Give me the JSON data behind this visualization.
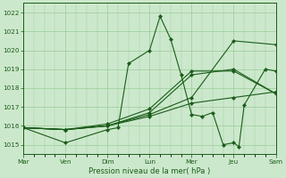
{
  "background_color": "#cce8cc",
  "plot_bg_color": "#cce8cc",
  "grid_color": "#99cc99",
  "line_color": "#1a5c1a",
  "xlabel": "Pression niveau de la mer( hPa )",
  "ylim": [
    1014.5,
    1022.5
  ],
  "yticks": [
    1015,
    1016,
    1017,
    1018,
    1019,
    1020,
    1021,
    1022
  ],
  "xlim": [
    0,
    24
  ],
  "day_tick_positions": [
    0,
    4,
    8,
    12,
    16,
    20,
    24
  ],
  "day_tick_labels": [
    "Mar",
    "Ven",
    "Dim",
    "Lun",
    "Mer",
    "Jeu",
    "Sam"
  ],
  "lines": [
    {
      "x": [
        0,
        4,
        8,
        9,
        10,
        12,
        13,
        14,
        15,
        16,
        17,
        18,
        19,
        20,
        20.5,
        21,
        23,
        24
      ],
      "y": [
        1015.9,
        1015.1,
        1015.8,
        1015.9,
        1019.3,
        1020.0,
        1021.8,
        1020.6,
        1018.7,
        1016.6,
        1016.5,
        1016.7,
        1015.0,
        1015.1,
        1014.9,
        1017.1,
        1019.0,
        1018.9
      ]
    },
    {
      "x": [
        0,
        4,
        8,
        12,
        16,
        20,
        24
      ],
      "y": [
        1015.9,
        1015.8,
        1016.0,
        1016.5,
        1017.2,
        1017.5,
        1017.8
      ]
    },
    {
      "x": [
        0,
        4,
        8,
        12,
        16,
        20,
        24
      ],
      "y": [
        1015.9,
        1015.8,
        1016.0,
        1016.6,
        1017.5,
        1020.5,
        1020.3
      ]
    },
    {
      "x": [
        0,
        4,
        8,
        12,
        16,
        20,
        24
      ],
      "y": [
        1015.9,
        1015.8,
        1016.0,
        1016.7,
        1018.7,
        1019.0,
        1017.7
      ]
    },
    {
      "x": [
        0,
        4,
        8,
        12,
        16,
        20,
        24
      ],
      "y": [
        1015.9,
        1015.8,
        1016.1,
        1016.9,
        1018.9,
        1018.9,
        1017.7
      ]
    }
  ]
}
